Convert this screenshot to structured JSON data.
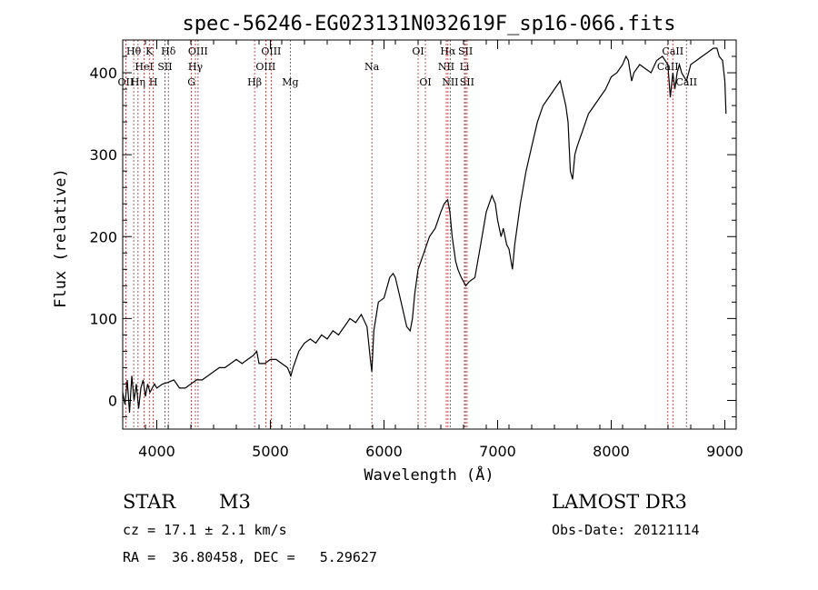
{
  "chart_data": {
    "type": "line",
    "title": "spec-56246-EG023131N032619F_sp16-066.fits",
    "xlabel": "Wavelength (Å)",
    "ylabel": "Flux (relative)",
    "xlim": [
      3700,
      9100
    ],
    "ylim": [
      -35,
      440
    ],
    "xticks": [
      4000,
      5000,
      6000,
      7000,
      8000,
      9000
    ],
    "yticks": [
      0,
      100,
      200,
      300,
      400
    ],
    "series": [
      {
        "name": "spectrum",
        "x": [
          3700,
          3720,
          3740,
          3760,
          3780,
          3800,
          3820,
          3840,
          3860,
          3880,
          3900,
          3920,
          3940,
          3960,
          3980,
          4000,
          4050,
          4100,
          4150,
          4200,
          4250,
          4300,
          4350,
          4400,
          4450,
          4500,
          4550,
          4600,
          4650,
          4700,
          4750,
          4800,
          4850,
          4880,
          4900,
          4950,
          5000,
          5050,
          5100,
          5150,
          5180,
          5200,
          5250,
          5300,
          5350,
          5400,
          5450,
          5500,
          5550,
          5600,
          5650,
          5700,
          5750,
          5800,
          5850,
          5880,
          5893,
          5910,
          5950,
          6000,
          6050,
          6080,
          6100,
          6150,
          6200,
          6230,
          6250,
          6270,
          6300,
          6350,
          6400,
          6450,
          6500,
          6530,
          6560,
          6580,
          6600,
          6630,
          6650,
          6680,
          6700,
          6720,
          6750,
          6800,
          6850,
          6900,
          6950,
          6980,
          7000,
          7030,
          7050,
          7080,
          7100,
          7130,
          7150,
          7200,
          7250,
          7300,
          7350,
          7400,
          7450,
          7500,
          7550,
          7600,
          7620,
          7640,
          7660,
          7680,
          7700,
          7750,
          7800,
          7850,
          7900,
          7950,
          8000,
          8050,
          8100,
          8130,
          8150,
          8180,
          8200,
          8250,
          8300,
          8350,
          8400,
          8450,
          8498,
          8520,
          8542,
          8560,
          8580,
          8600,
          8620,
          8662,
          8700,
          8750,
          8800,
          8850,
          8900,
          8930,
          8950,
          8980,
          9000,
          9010
        ],
        "values": [
          10,
          -5,
          25,
          -15,
          30,
          0,
          20,
          -10,
          15,
          25,
          5,
          20,
          10,
          15,
          20,
          15,
          20,
          22,
          25,
          15,
          15,
          20,
          25,
          25,
          30,
          35,
          40,
          40,
          45,
          50,
          45,
          50,
          55,
          60,
          45,
          45,
          50,
          50,
          45,
          40,
          30,
          40,
          60,
          70,
          75,
          70,
          80,
          75,
          85,
          80,
          90,
          100,
          95,
          105,
          90,
          50,
          35,
          85,
          120,
          125,
          150,
          155,
          150,
          120,
          90,
          85,
          100,
          130,
          160,
          180,
          200,
          210,
          230,
          240,
          245,
          230,
          200,
          170,
          160,
          150,
          145,
          140,
          145,
          150,
          190,
          230,
          250,
          240,
          220,
          200,
          210,
          190,
          185,
          160,
          190,
          240,
          280,
          310,
          340,
          360,
          370,
          380,
          390,
          360,
          340,
          280,
          270,
          300,
          310,
          330,
          350,
          360,
          370,
          380,
          395,
          400,
          410,
          420,
          415,
          390,
          400,
          410,
          405,
          400,
          415,
          420,
          410,
          370,
          400,
          380,
          400,
          410,
          400,
          390,
          410,
          415,
          420,
          425,
          430,
          430,
          420,
          415,
          390,
          350
        ]
      }
    ],
    "emission_lines": [
      {
        "name": "Hθ",
        "wave": 3797,
        "row": 0
      },
      {
        "name": "K",
        "wave": 3934,
        "row": 0
      },
      {
        "name": "Hδ",
        "wave": 4102,
        "row": 0
      },
      {
        "name": "OIII",
        "wave": 4363,
        "row": 0
      },
      {
        "name": "OIII",
        "wave": 5007,
        "row": 0
      },
      {
        "name": "OI",
        "wave": 6300,
        "row": 0
      },
      {
        "name": "Hα",
        "wave": 6563,
        "row": 0
      },
      {
        "name": "SII",
        "wave": 6717,
        "row": 0
      },
      {
        "name": "CaII",
        "wave": 8542,
        "row": 0
      },
      {
        "name": "HeI",
        "wave": 3889,
        "row": 1
      },
      {
        "name": "SII",
        "wave": 4072,
        "row": 1
      },
      {
        "name": "Hγ",
        "wave": 4340,
        "row": 1
      },
      {
        "name": "OIII",
        "wave": 4959,
        "row": 1
      },
      {
        "name": "Na",
        "wave": 5893,
        "row": 1
      },
      {
        "name": "NII",
        "wave": 6548,
        "row": 1
      },
      {
        "name": "Li",
        "wave": 6708,
        "row": 1
      },
      {
        "name": "CaII",
        "wave": 8498,
        "row": 1
      },
      {
        "name": "OII",
        "wave": 3727,
        "row": 2
      },
      {
        "name": "Hη",
        "wave": 3835,
        "row": 2
      },
      {
        "name": "H",
        "wave": 3969,
        "row": 2
      },
      {
        "name": "G",
        "wave": 4305,
        "row": 2
      },
      {
        "name": "Hβ",
        "wave": 4861,
        "row": 2
      },
      {
        "name": "Mg",
        "wave": 5175,
        "row": 2
      },
      {
        "name": "OI",
        "wave": 6364,
        "row": 2
      },
      {
        "name": "NII",
        "wave": 6583,
        "row": 2
      },
      {
        "name": "SII",
        "wave": 6731,
        "row": 2
      },
      {
        "name": "CaII",
        "wave": 8662,
        "row": 2
      }
    ],
    "line_color": "#000000",
    "marker_color": "#b22222"
  },
  "info": {
    "class": "STAR",
    "subclass": "M3",
    "survey": "LAMOST DR3",
    "cz": "cz = 17.1 ± 2.1 km/s",
    "obs_date": "Obs-Date: 20121114",
    "coords": "RA =  36.80458, DEC =   5.29627"
  }
}
